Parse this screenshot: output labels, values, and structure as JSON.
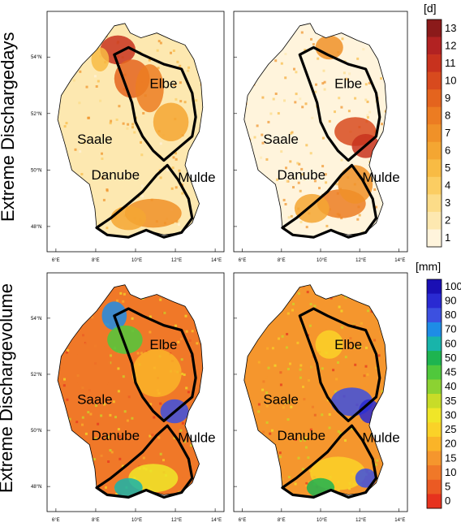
{
  "rows": [
    {
      "id": "days",
      "label": "Extreme Dischargedays",
      "unit": "[d]",
      "colorbar": {
        "labels": [
          "13",
          "12",
          "11",
          "10",
          "9",
          "8",
          "7",
          "6",
          "5",
          "4",
          "3",
          "2",
          "1"
        ],
        "colors": [
          "#8b1a1a",
          "#b22222",
          "#c8321e",
          "#d84a1e",
          "#e4641e",
          "#ec7c22",
          "#f09128",
          "#f4a632",
          "#f8bb44",
          "#fbcd62",
          "#fcdc88",
          "#fde8b0",
          "#fff4dc"
        ]
      }
    },
    {
      "id": "volume",
      "label": "Extreme Dischargevolume",
      "unit": "[mm]",
      "colorbar": {
        "labels": [
          "100",
          "90",
          "80",
          "70",
          "60",
          "50",
          "45",
          "40",
          "35",
          "30",
          "25",
          "20",
          "15",
          "10",
          "5",
          "0"
        ],
        "colors": [
          "#1a0fb4",
          "#2a2ad2",
          "#3c50e0",
          "#1e8ce6",
          "#18b4aa",
          "#1eb450",
          "#50c83c",
          "#8cd232",
          "#c8dc28",
          "#f0e628",
          "#fad228",
          "#fab428",
          "#f5962d",
          "#f07828",
          "#eb5a23",
          "#e6321e"
        ]
      }
    }
  ],
  "rivers": [
    "Elbe",
    "Saale",
    "Danube",
    "Mulde"
  ],
  "lon_ticks": [
    "6°E",
    "8°E",
    "10°E",
    "12°E",
    "14°E"
  ],
  "lat_ticks": [
    "54°N",
    "52°N",
    "50°N",
    "48°N"
  ]
}
